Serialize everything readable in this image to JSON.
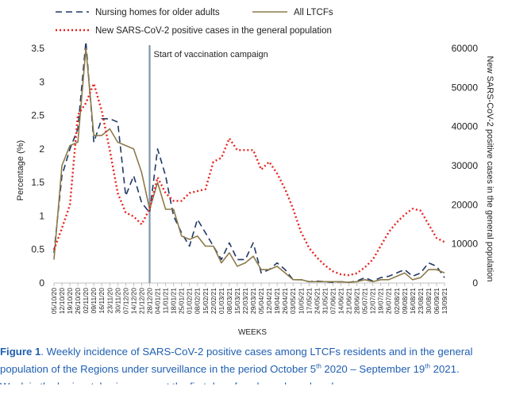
{
  "chart_data": {
    "type": "line",
    "title": "",
    "xlabel": "WEEKS",
    "ylabel": "Percentage (%)",
    "y2label": "New SARS-CoV-2 positive cases in the general population",
    "ylim": [
      0,
      3.5
    ],
    "y2lim": [
      0,
      60000
    ],
    "yticks": [
      "0",
      "0.5",
      "1",
      "1.5",
      "2",
      "2.5",
      "3",
      "3.5"
    ],
    "y2ticks": [
      "0",
      "10000",
      "20000",
      "30000",
      "40000",
      "50000",
      "60000"
    ],
    "grid": false,
    "legend_position": "top",
    "x": [
      "05/10/20",
      "12/10/20",
      "19/10/20",
      "26/10/20",
      "02/11/20",
      "09/11/20",
      "16/11/20",
      "23/11/20",
      "30/11/20",
      "07/12/20",
      "14/12/20",
      "21/12/20",
      "28/12/20",
      "04/01/21",
      "11/01/21",
      "18/01/21",
      "25/01/21",
      "01/02/21",
      "08/02/21",
      "15/02/21",
      "22/02/21",
      "01/03/21",
      "08/03/21",
      "15/03/21",
      "22/03/21",
      "29/03/21",
      "05/04/21",
      "12/04/21",
      "19/04/21",
      "26/04/21",
      "03/05/21",
      "10/05/21",
      "17/05/21",
      "24/05/21",
      "31/05/21",
      "07/06/21",
      "14/06/21",
      "21/06/21",
      "28/06/21",
      "05/07/21",
      "12/07/21",
      "19/07/21",
      "26/07/21",
      "02/08/21",
      "09/08/21",
      "16/08/21",
      "23/08/21",
      "30/08/21",
      "06/09/21",
      "13/09/21"
    ],
    "series": [
      {
        "name": "Nursing homes for older adults",
        "axis": "left",
        "color": "#1f3864",
        "style": "dashed",
        "values": [
          0.45,
          1.6,
          2.0,
          2.3,
          3.6,
          2.1,
          2.45,
          2.45,
          2.4,
          1.3,
          1.6,
          1.2,
          1.05,
          2.0,
          1.6,
          1.0,
          0.75,
          0.55,
          0.95,
          0.75,
          0.55,
          0.35,
          0.6,
          0.35,
          0.35,
          0.6,
          0.15,
          0.2,
          0.3,
          0.2,
          0.05,
          0.05,
          0.02,
          0.03,
          0.02,
          0.01,
          0.02,
          0.01,
          0.03,
          0.08,
          0.03,
          0.08,
          0.1,
          0.15,
          0.2,
          0.1,
          0.15,
          0.3,
          0.25,
          0.08
        ]
      },
      {
        "name": "All LTCFs",
        "axis": "left",
        "color": "#8c7a4a",
        "style": "solid",
        "values": [
          0.35,
          1.75,
          2.05,
          2.1,
          3.5,
          2.2,
          2.2,
          2.3,
          2.1,
          2.05,
          2.0,
          1.65,
          1.1,
          1.5,
          1.1,
          1.1,
          0.7,
          0.65,
          0.7,
          0.55,
          0.55,
          0.3,
          0.45,
          0.25,
          0.3,
          0.4,
          0.2,
          0.2,
          0.25,
          0.15,
          0.05,
          0.05,
          0.02,
          0.02,
          0.02,
          0.02,
          0.02,
          0.01,
          0.02,
          0.05,
          0.02,
          0.05,
          0.05,
          0.1,
          0.15,
          0.05,
          0.08,
          0.2,
          0.2,
          0.15
        ]
      },
      {
        "name": "New SARS-CoV-2 positive cases in the general population",
        "axis": "right",
        "color": "#e8231f",
        "style": "dotted",
        "values": [
          8500,
          14000,
          20000,
          43000,
          46000,
          51000,
          44000,
          34000,
          23000,
          18000,
          17000,
          15000,
          19000,
          27000,
          23000,
          21000,
          21000,
          23000,
          23500,
          24000,
          31000,
          32000,
          37000,
          34000,
          34000,
          34000,
          29000,
          31000,
          28000,
          24000,
          19000,
          13000,
          9000,
          6500,
          4500,
          3000,
          2200,
          2000,
          2500,
          4000,
          6000,
          9500,
          13000,
          15500,
          17500,
          19000,
          18500,
          15000,
          11500,
          10500
        ]
      }
    ],
    "annotations": [
      {
        "text": "Start of vaccination campaign",
        "x": "28/12/20",
        "type": "vertical-line",
        "color": "#7f96ad"
      }
    ]
  },
  "caption": {
    "label": "Figure 1",
    "line1": ". Weekly incidence of SARS-CoV-2 positive cases among LTCFs residents and in the general",
    "line2_a": "population of the Regions under surveillance in the period October 5",
    "sup_a": "th",
    "line2_b": " 2020 – September 19",
    "sup_b": "th",
    "line2_c": " 2021.",
    "line3": "Week in the horizontal axis represent the first day of each week analysed"
  }
}
